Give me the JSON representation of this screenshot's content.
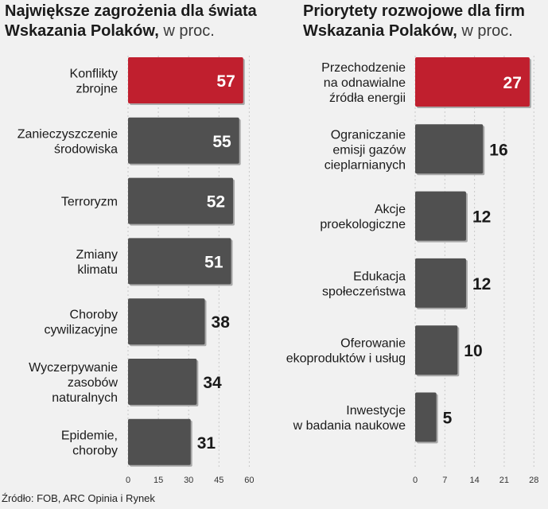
{
  "chart_data": [
    {
      "type": "bar",
      "orientation": "horizontal",
      "title": "Największe zagrożenia dla świata",
      "subtitle_bold": "Wskazania Polaków,",
      "subtitle_rest": " w proc.",
      "categories": [
        [
          "Konflikty",
          "zbrojne"
        ],
        [
          "Zanieczyszczenie",
          "środowiska"
        ],
        [
          "Terroryzm"
        ],
        [
          "Zmiany",
          "klimatu"
        ],
        [
          "Choroby",
          "cywilizacyjne"
        ],
        [
          "Wyczerpywanie",
          "zasobów",
          "naturalnych"
        ],
        [
          "Epidemie,",
          "choroby"
        ]
      ],
      "values": [
        57,
        55,
        52,
        51,
        38,
        34,
        31
      ],
      "xlim": [
        0,
        60
      ],
      "ticks": [
        0,
        15,
        30,
        45,
        60
      ],
      "highlight_index": 0
    },
    {
      "type": "bar",
      "orientation": "horizontal",
      "title": "Priorytety rozwojowe dla firm",
      "subtitle_bold": "Wskazania Polaków,",
      "subtitle_rest": " w proc.",
      "categories": [
        [
          "Przechodzenie",
          "na odnawialne",
          "źródła energii"
        ],
        [
          "Ograniczanie",
          "emisji gazów",
          "cieplarnianych"
        ],
        [
          "Akcje",
          "proekologiczne"
        ],
        [
          "Edukacja",
          "społeczeństwa"
        ],
        [
          "Oferowanie",
          "ekoproduktów i usług"
        ],
        [
          "Inwestycje",
          "w badania naukowe"
        ]
      ],
      "values": [
        27,
        16,
        12,
        12,
        10,
        5
      ],
      "xlim": [
        0,
        28
      ],
      "ticks": [
        0,
        7,
        14,
        21,
        28
      ],
      "highlight_index": 0
    }
  ],
  "colors": {
    "highlight": "#c01f2e",
    "bar": "#505050",
    "grid": "#c8c8c8",
    "label_inside": "#ffffff",
    "label_outside": "#1a1a1a"
  },
  "source": "Źródło: FOB, ARC Opinia i Rynek"
}
